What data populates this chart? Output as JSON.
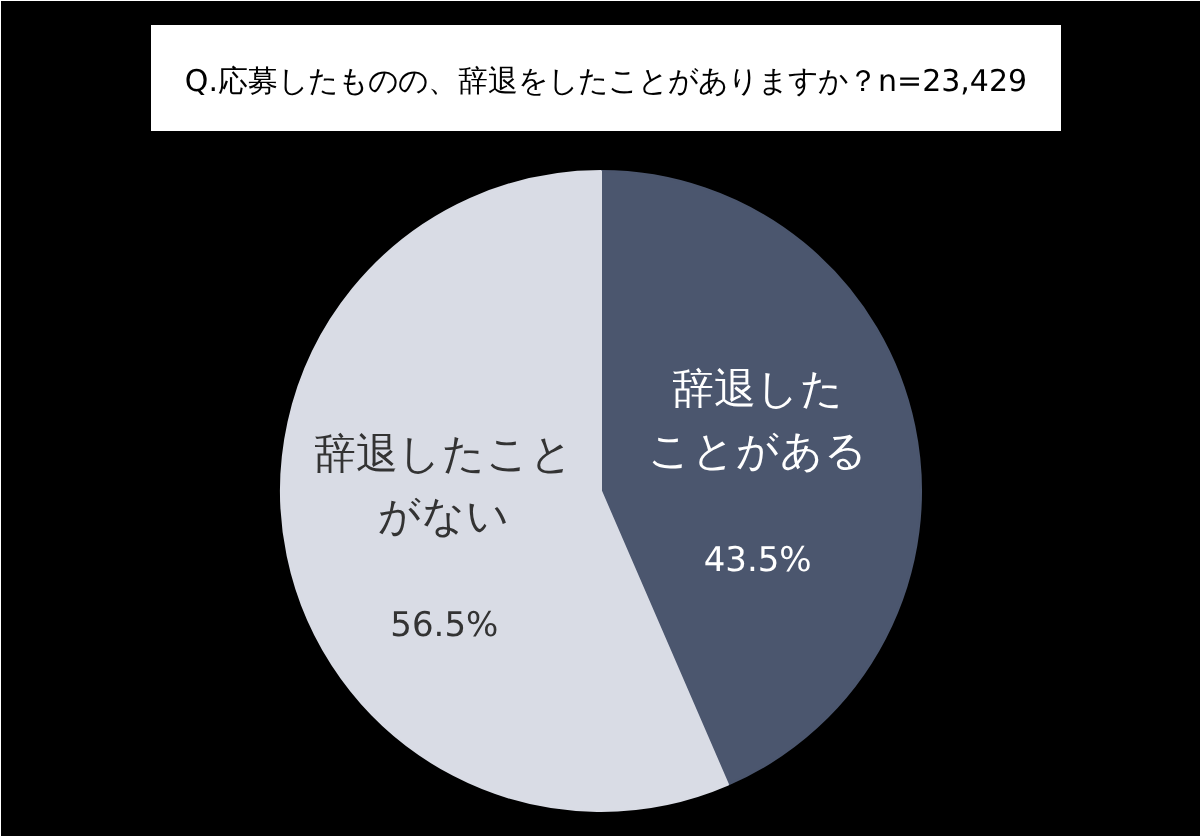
{
  "chart_data": {
    "type": "pie",
    "title": "Q.応募したものの、辞退をしたことがありますか？n=23,429",
    "categories": [
      "辞退したことがある",
      "辞退したことがない"
    ],
    "values": [
      43.5,
      56.5
    ],
    "value_labels": [
      "43.5%",
      "56.5%"
    ],
    "colors": [
      "#4b566e",
      "#d9dce5"
    ]
  }
}
